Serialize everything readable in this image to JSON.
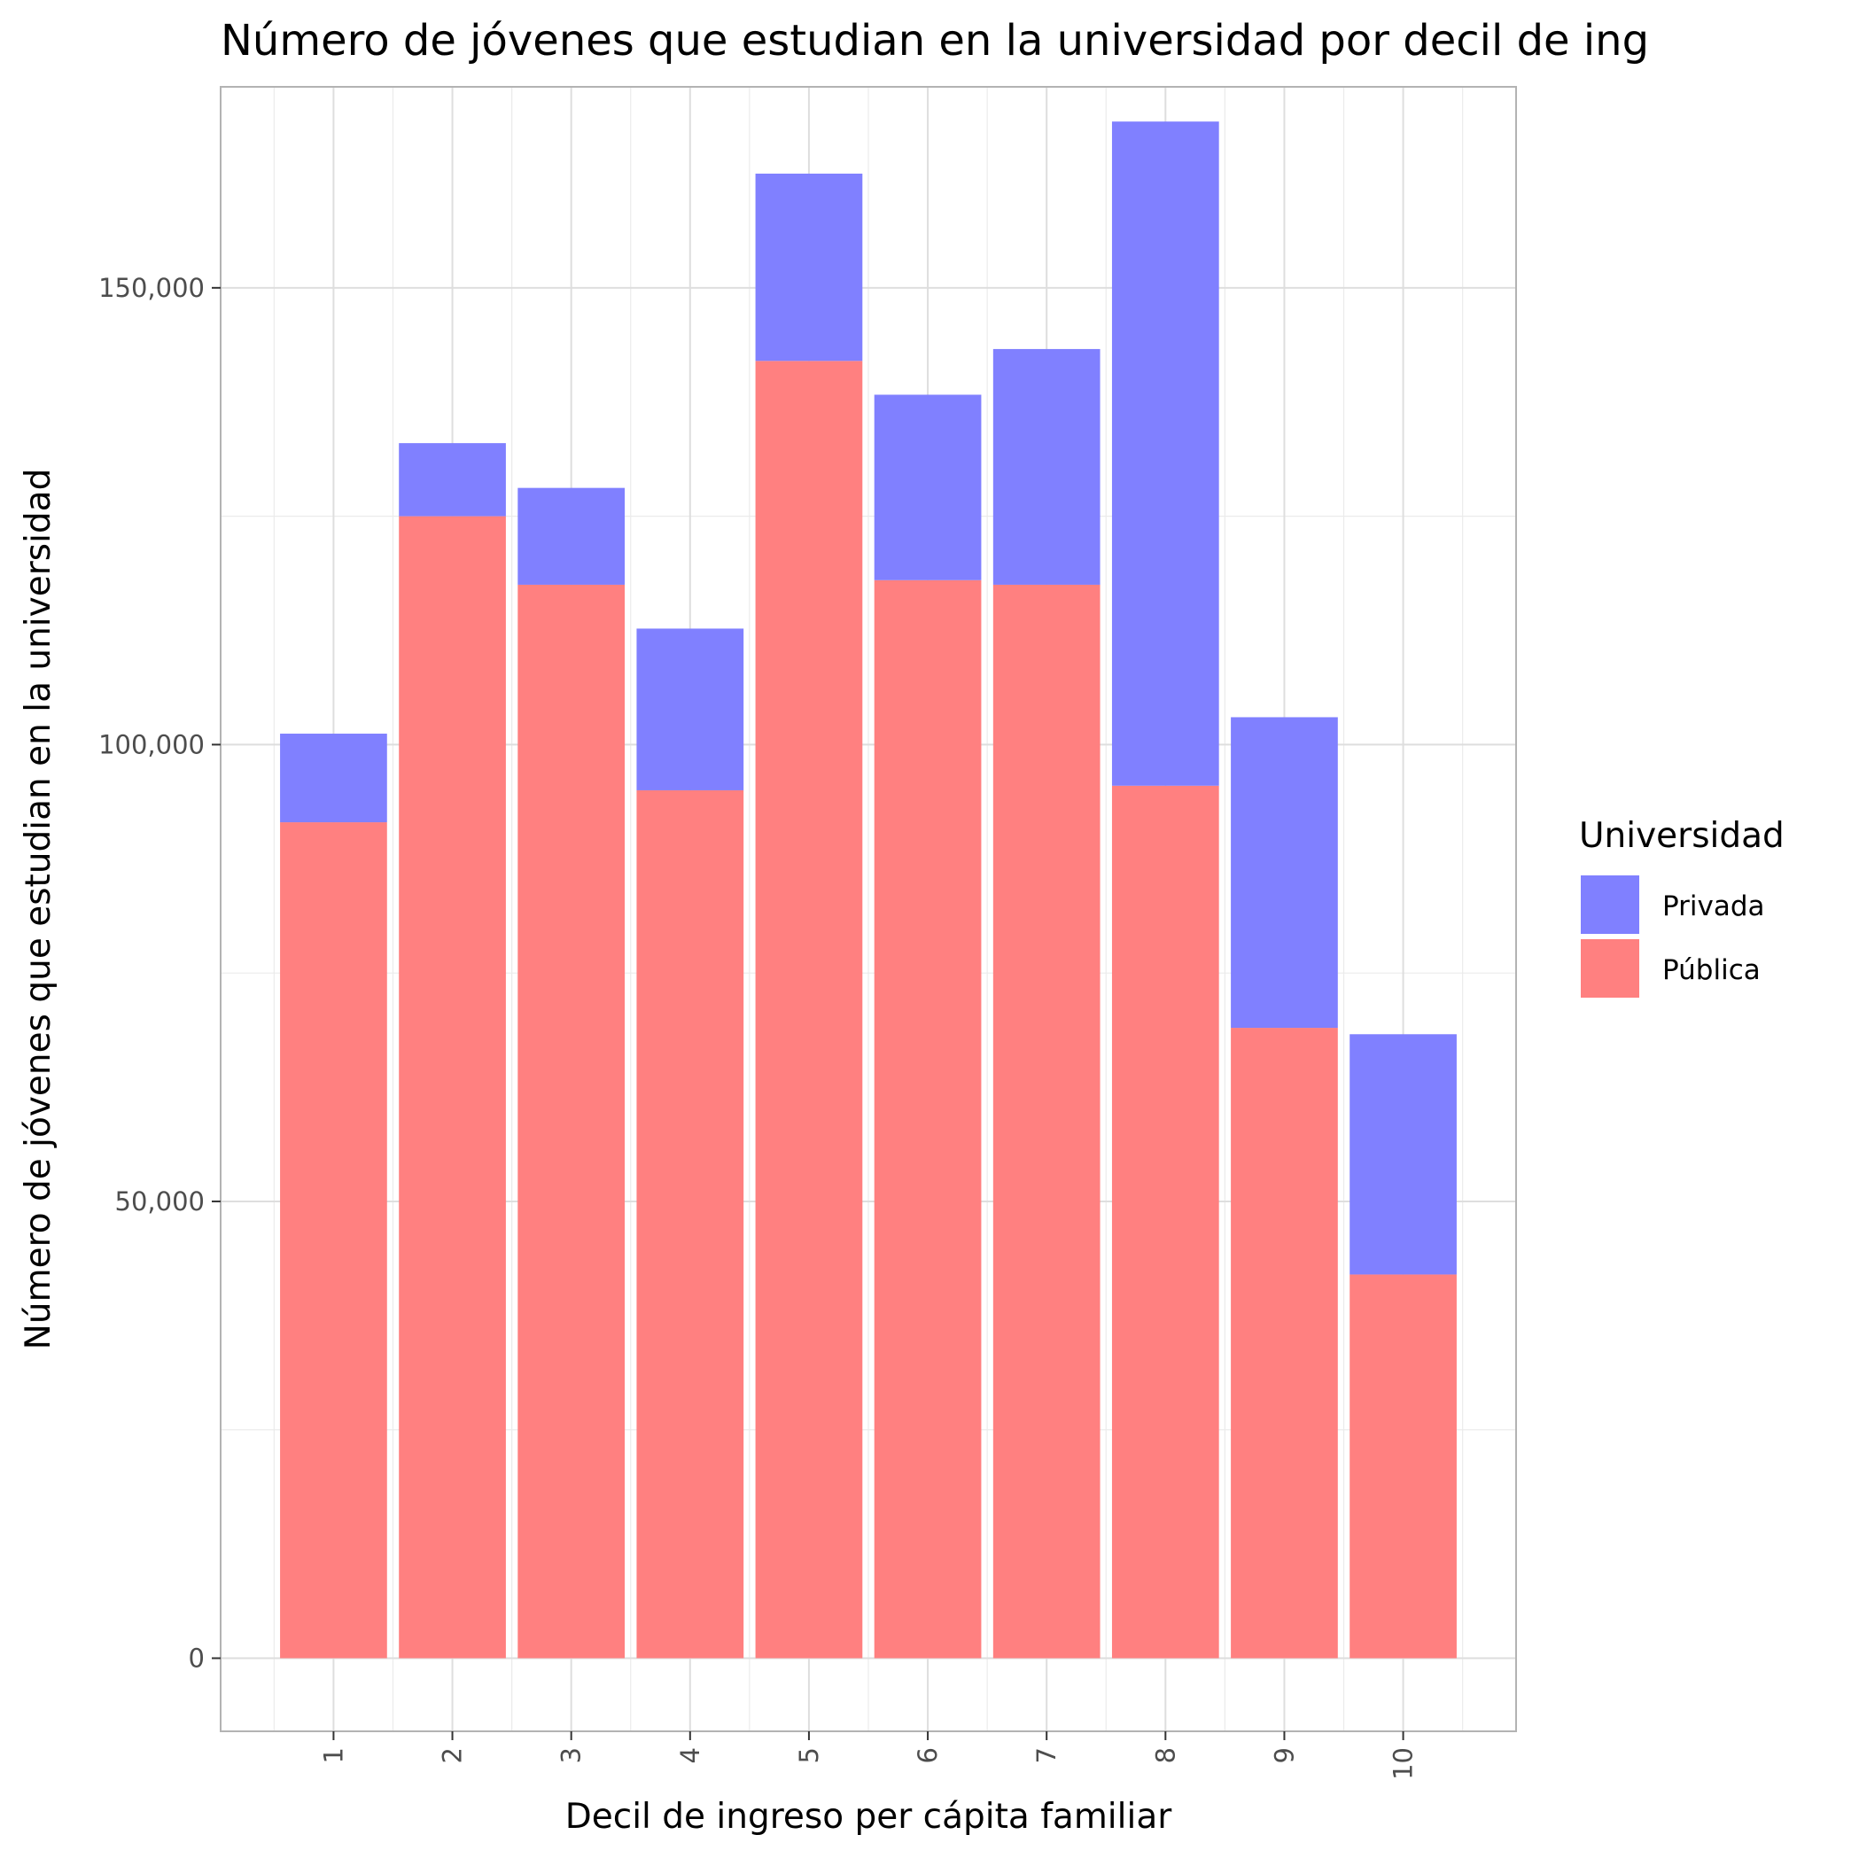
{
  "chart_data": {
    "type": "bar",
    "stacked": true,
    "title": "Número de jóvenes que estudian en la universidad por decil de ing",
    "xlabel": "Decil de ingreso per cápita familiar",
    "ylabel": "Número de jóvenes que estudian en la universidad",
    "categories": [
      "1",
      "2",
      "3",
      "4",
      "5",
      "6",
      "7",
      "8",
      "9",
      "10"
    ],
    "series": [
      {
        "name": "Pública",
        "color": "#ff8080",
        "values": [
          91500,
          125000,
          117500,
          95000,
          142000,
          118000,
          117500,
          95500,
          69000,
          42000
        ]
      },
      {
        "name": "Privada",
        "color": "#8080ff",
        "values": [
          9700,
          8000,
          10600,
          17700,
          20500,
          20300,
          25800,
          72700,
          34000,
          26300
        ]
      }
    ],
    "yticks": [
      0,
      50000,
      100000,
      150000
    ],
    "ytick_labels": [
      "0",
      "50,000",
      "100,000",
      "150,000"
    ],
    "ylim": [
      -8000,
      172000
    ],
    "grid": true,
    "legend": {
      "title": "Universidad",
      "position": "right",
      "items": [
        "Privada",
        "Pública"
      ]
    }
  }
}
